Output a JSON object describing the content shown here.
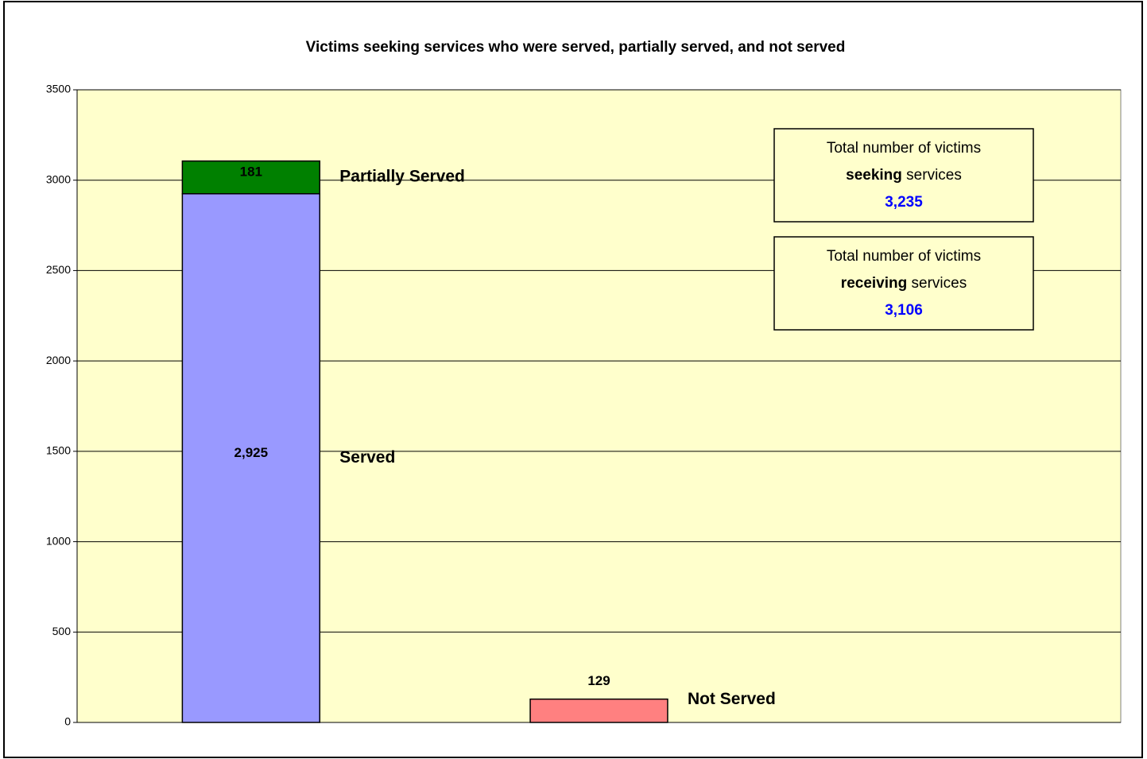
{
  "chart_data": {
    "type": "bar",
    "stacked": true,
    "title": "Victims seeking services who were served, partially served, and not served",
    "categories": [
      null,
      null,
      null
    ],
    "series": [
      {
        "name": "Served",
        "color": "#9999ff",
        "values": [
          2925,
          null,
          null
        ],
        "value_labels": [
          "2,925",
          null,
          null
        ]
      },
      {
        "name": "Partially Served",
        "color": "#008000",
        "values": [
          181,
          null,
          null
        ],
        "value_labels": [
          "181",
          null,
          null
        ]
      },
      {
        "name": "Not Served",
        "color": "#ff8080",
        "values": [
          null,
          129,
          null
        ],
        "value_labels": [
          null,
          "129",
          null
        ]
      }
    ],
    "ylim": [
      0,
      3500
    ],
    "yticks": [
      0,
      500,
      1000,
      1500,
      2000,
      2500,
      3000,
      3500
    ],
    "grid": true,
    "plot_background": "#ffffcc",
    "annotations": [
      {
        "line1": "Total number of victims",
        "bold": "seeking",
        "rest": "services",
        "value": "3,235"
      },
      {
        "line1": "Total number of victims",
        "bold": "receiving",
        "rest": "services",
        "value": "3,106"
      }
    ]
  }
}
